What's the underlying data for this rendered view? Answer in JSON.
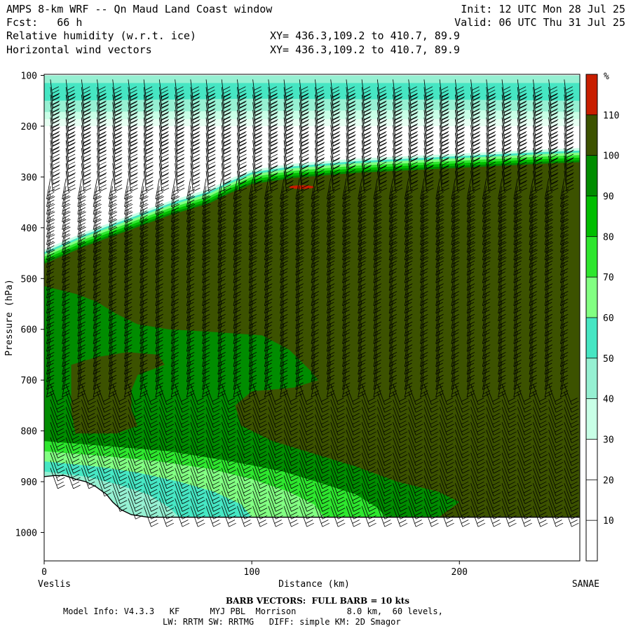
{
  "header": {
    "title": "AMPS 8-km WRF -- Qn Maud Land Coast window",
    "fcst": "Fcst:   66 h",
    "field1": "Relative humidity (w.r.t. ice)",
    "field2": "Horizontal wind vectors",
    "xy1": "XY= 436.3,109.2 to 410.7, 89.9",
    "xy2": "XY= 436.3,109.2 to 410.7, 89.9",
    "init": "Init: 12 UTC Mon 28 Jul 25",
    "valid": "Valid: 06 UTC Thu 31 Jul 25"
  },
  "chart_data": {
    "type": "cross-section",
    "title": "Relative humidity (w.r.t. ice)",
    "subtitle": "Horizontal wind vectors",
    "xlabel": "Distance (km)",
    "ylabel": "Pressure (hPa)",
    "x_ticks": [
      0,
      100,
      200
    ],
    "y_ticks": [
      100,
      200,
      300,
      400,
      500,
      600,
      700,
      800,
      900,
      1000
    ],
    "xlim": [
      0,
      258
    ],
    "ylim": [
      1050,
      100
    ],
    "x_end_labels": {
      "left": "Veslis",
      "right": "SANAE"
    },
    "colorbar": {
      "unit": "%",
      "levels": [
        10,
        20,
        30,
        40,
        50,
        60,
        70,
        80,
        90,
        100,
        110
      ],
      "colors": [
        "#ffffff",
        "#ffffff",
        "#ffffff",
        "#c8ffe6",
        "#96f0d2",
        "#46e6c3",
        "#82ff82",
        "#2ee62e",
        "#00bd00",
        "#008c00",
        "#3c5200",
        "#c81e00"
      ]
    },
    "rh_regions": [
      {
        "name": "upper moist band",
        "rh_min": 40,
        "rh_max": 50,
        "p_top": 100,
        "p_bottom": 205
      },
      {
        "name": "dry layer",
        "rh_min": 0,
        "rh_max": 30,
        "p_top": 205,
        "p_bottom": 470
      },
      {
        "name": "saturated core",
        "rh_min": 100,
        "rh_max": 110,
        "p_top": 265,
        "p_bottom": 970
      },
      {
        "name": "embedded supersaturated spot",
        "rh_min": 110,
        "rh_max": 120,
        "x": 127,
        "p": 320
      },
      {
        "name": "mid-level 90-100 zone",
        "rh_min": 90,
        "rh_max": 100,
        "p_top": 510,
        "p_bottom": 930
      },
      {
        "name": "low-level moist wedge",
        "rh_min": 40,
        "rh_max": 80,
        "p_top": 820,
        "p_bottom": 960
      }
    ],
    "terrain": [
      [
        0,
        890
      ],
      [
        5,
        888
      ],
      [
        10,
        888
      ],
      [
        15,
        895
      ],
      [
        20,
        900
      ],
      [
        25,
        910
      ],
      [
        30,
        925
      ],
      [
        33,
        940
      ],
      [
        37,
        955
      ],
      [
        42,
        965
      ],
      [
        50,
        970
      ],
      [
        100,
        970
      ],
      [
        150,
        970
      ],
      [
        200,
        970
      ],
      [
        258,
        970
      ]
    ],
    "barb_note": "Wind barbs: full barb = 10 kts"
  },
  "footer": {
    "barb": "BARB VECTORS:  FULL BARB = 10 kts",
    "model1": "Model Info: V4.3.3   KF      MYJ PBL  Morrison          8.0 km,  60 levels,",
    "model2": "LW: RRTM SW: RRTMG   DIFF: simple KM: 2D Smagor"
  }
}
